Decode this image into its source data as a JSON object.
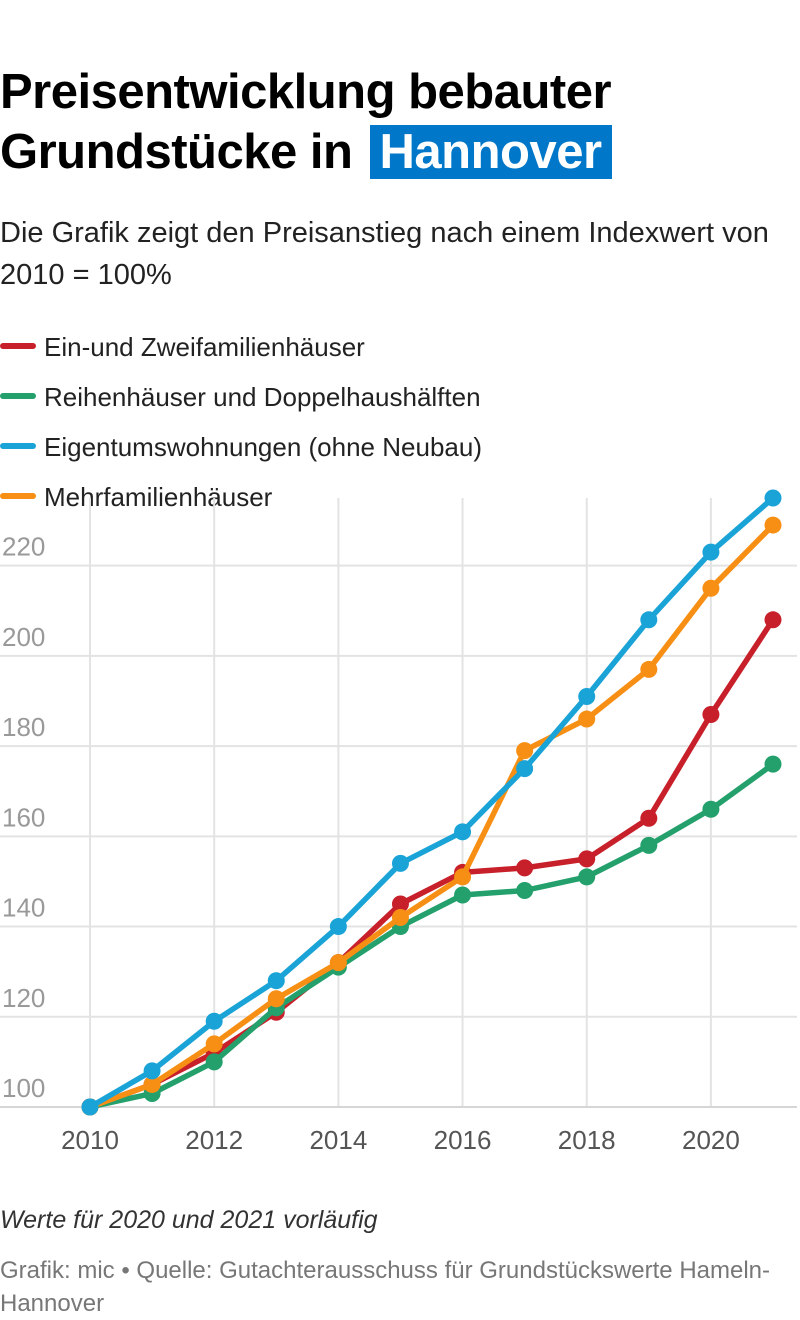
{
  "title_line1": "Preisentwicklung bebauter",
  "title_line2": "Grundstücke in",
  "title_highlight": "Hannover",
  "subtitle": "Die Grafik zeigt den Preisanstieg nach einem Indexwert von 2010 = 100%",
  "note": "Werte für 2020 und 2021 vorläufig",
  "source": "Grafik: mic • Quelle: Gutachterausschuss für Grundstückswerte Hameln-Hannover",
  "colors": {
    "highlight": "#0077c8",
    "grid": "#e3e3e3",
    "axis_text": "#999999",
    "x_text": "#555555"
  },
  "chart_data": {
    "type": "line",
    "title": "Preisentwicklung bebauter Grundstücke in Hannover",
    "x": [
      2010,
      2011,
      2012,
      2013,
      2014,
      2015,
      2016,
      2017,
      2018,
      2019,
      2020,
      2021
    ],
    "x_ticks": [
      2010,
      2012,
      2014,
      2016,
      2018,
      2020
    ],
    "y_ticks": [
      100,
      120,
      140,
      160,
      180,
      200,
      220
    ],
    "ylim": [
      100,
      235
    ],
    "xlim": [
      2010,
      2021
    ],
    "grid": "on",
    "legend_position": "top",
    "series": [
      {
        "name": "Ein-und Zweifamilienhäuser",
        "color": "#c8202a",
        "values": [
          100,
          105,
          112,
          121,
          132,
          145,
          152,
          153,
          155,
          164,
          187,
          208
        ]
      },
      {
        "name": "Reihenhäuser und Doppelhaushälften",
        "color": "#23a06b",
        "values": [
          100,
          103,
          110,
          122,
          131,
          140,
          147,
          148,
          151,
          158,
          166,
          176
        ]
      },
      {
        "name": "Eigentumswohnungen (ohne Neubau)",
        "color": "#1aa3d6",
        "values": [
          100,
          108,
          119,
          128,
          140,
          154,
          161,
          175,
          191,
          208,
          223,
          235
        ]
      },
      {
        "name": "Mehrfamilienhäuser",
        "color": "#f78f14",
        "values": [
          100,
          105,
          114,
          124,
          132,
          142,
          151,
          179,
          186,
          197,
          215,
          229
        ]
      }
    ]
  }
}
